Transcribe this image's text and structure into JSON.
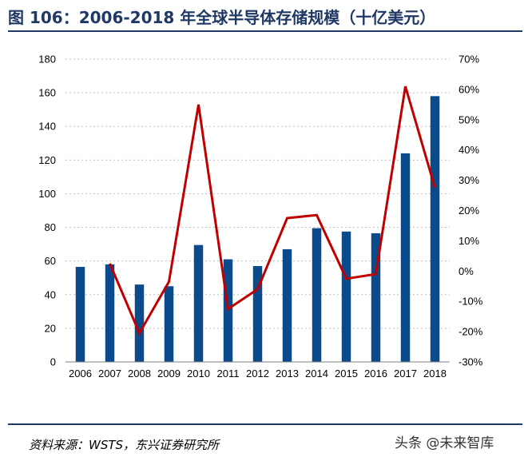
{
  "title": "图 106：2006-2018 年全球半导体存储规模（十亿美元）",
  "source": "资料来源：WSTS，东兴证券研究所",
  "watermark": "头条 @未来智库",
  "colors": {
    "bar": "#0b4a8b",
    "line": "#c00000",
    "title": "#1f3864"
  },
  "chart_data": {
    "type": "bar",
    "categories": [
      "2006",
      "2007",
      "2008",
      "2009",
      "2010",
      "2011",
      "2012",
      "2013",
      "2014",
      "2015",
      "2016",
      "2017",
      "2018"
    ],
    "series": [
      {
        "type": "bar",
        "axis": "left",
        "values": [
          56.5,
          58,
          46,
          45,
          69.5,
          61,
          57,
          67,
          79.5,
          77.5,
          76.5,
          124,
          158
        ]
      },
      {
        "type": "line",
        "axis": "right",
        "values": [
          null,
          2.5,
          -20.5,
          -3.5,
          55,
          -12.5,
          -6,
          17.5,
          18.5,
          -2.5,
          -1,
          61,
          27.5
        ]
      }
    ],
    "y_left": {
      "min": 0,
      "max": 180,
      "ticks": [
        0,
        20,
        40,
        60,
        80,
        100,
        120,
        140,
        160,
        180
      ]
    },
    "y_right": {
      "min": -30,
      "max": 70,
      "ticks": [
        "-30%",
        "-20%",
        "-10%",
        "0%",
        "10%",
        "20%",
        "30%",
        "40%",
        "50%",
        "60%",
        "70%"
      ]
    },
    "grid": true,
    "xlabel": "",
    "ylabel": ""
  }
}
